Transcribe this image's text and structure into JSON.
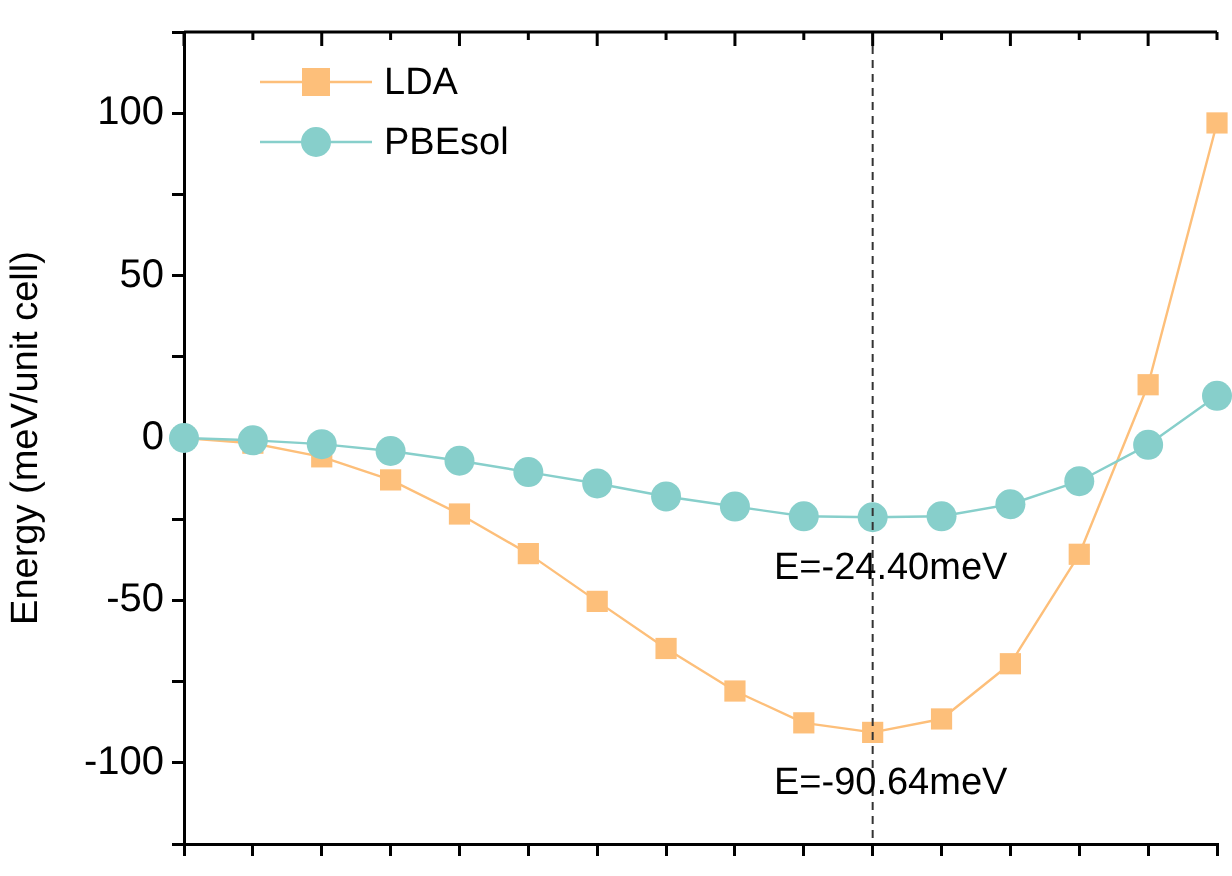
{
  "chart_data": {
    "type": "line",
    "ylabel": "Energy (meV/unit cell)",
    "categories": [
      null,
      null,
      null,
      null,
      null,
      null,
      null,
      null,
      null,
      null,
      null,
      null,
      null,
      null,
      null,
      null
    ],
    "series": [
      {
        "name": "LDA",
        "color": "#fdbf7a",
        "marker": "square",
        "values": [
          0,
          -1.6,
          -5.8,
          -12.9,
          -23.4,
          -35.6,
          -50.3,
          -64.8,
          -77.9,
          -87.7,
          -90.64,
          -86.5,
          -69.5,
          -35.8,
          16.4,
          97
        ]
      },
      {
        "name": "PBEsol",
        "color": "#87cfcb",
        "marker": "circle",
        "values": [
          0,
          -0.7,
          -1.9,
          -4.0,
          -7.0,
          -10.5,
          -14.0,
          -18.0,
          -21.1,
          -24.1,
          -24.4,
          -24.1,
          -20.4,
          -13.3,
          -2.1,
          13
        ]
      }
    ],
    "ylim": [
      -125,
      125
    ],
    "yticks": [
      {
        "value": -125,
        "label": null
      },
      -100,
      {
        "value": -75,
        "label": null
      },
      -50,
      {
        "value": -25,
        "label": null
      },
      0,
      {
        "value": 25,
        "label": null
      },
      50,
      {
        "value": 75,
        "label": null
      },
      100,
      {
        "value": 125,
        "label": null
      }
    ],
    "annotations": [
      {
        "text": "E=-24.40meV",
        "y": -24.4
      },
      {
        "text": "E=-90.64meV",
        "y": -90.64
      }
    ],
    "legend": "top left",
    "grid": false,
    "line_style": "solid"
  }
}
